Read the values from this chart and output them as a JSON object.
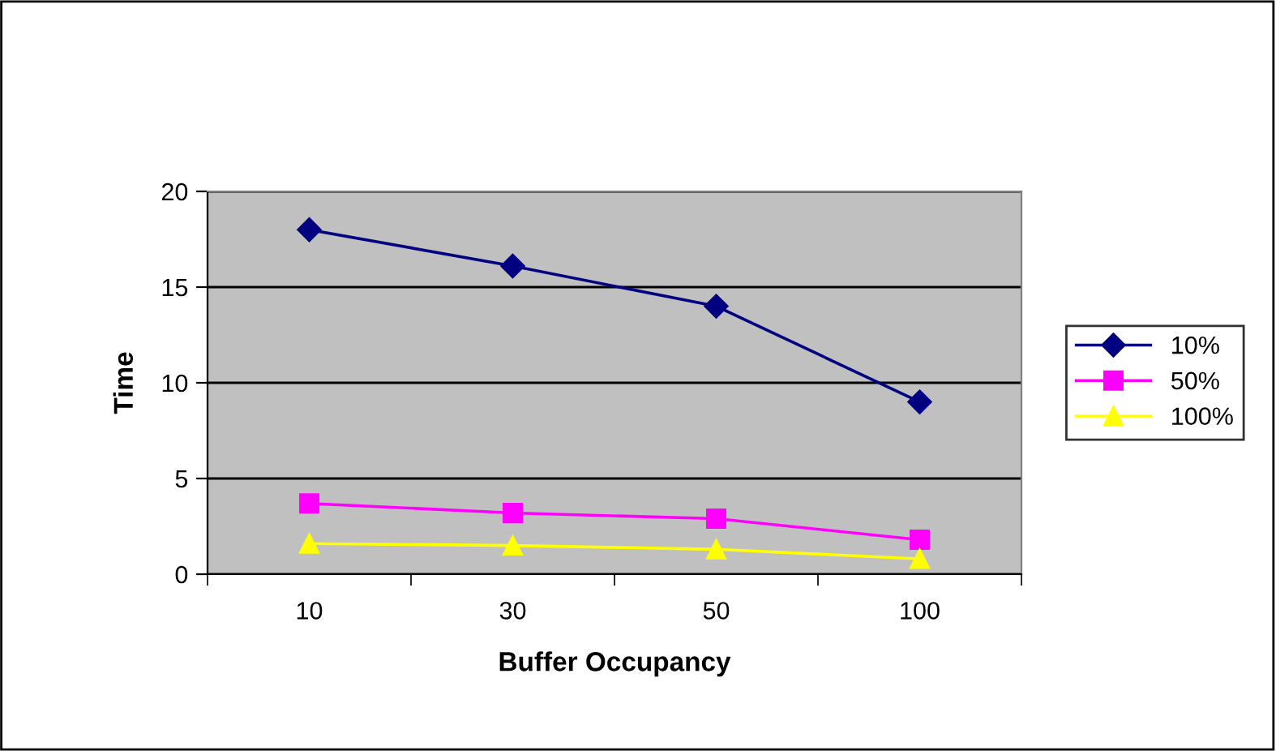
{
  "chart_data": {
    "type": "line",
    "xlabel": "Buffer Occupancy",
    "ylabel": "Time",
    "categories": [
      "10",
      "30",
      "50",
      "100"
    ],
    "series": [
      {
        "name": "10%",
        "color": "#000080",
        "marker": "diamond",
        "values": [
          18,
          16.1,
          14,
          9
        ]
      },
      {
        "name": "50%",
        "color": "#ff00ff",
        "marker": "square",
        "values": [
          3.7,
          3.2,
          2.9,
          1.8
        ]
      },
      {
        "name": "100%",
        "color": "#ffff00",
        "marker": "triangle",
        "values": [
          1.6,
          1.5,
          1.3,
          0.8
        ]
      }
    ],
    "ylim": [
      0,
      20
    ],
    "yticks": [
      0,
      5,
      10,
      15,
      20
    ],
    "grid": "y",
    "legend": "right"
  }
}
